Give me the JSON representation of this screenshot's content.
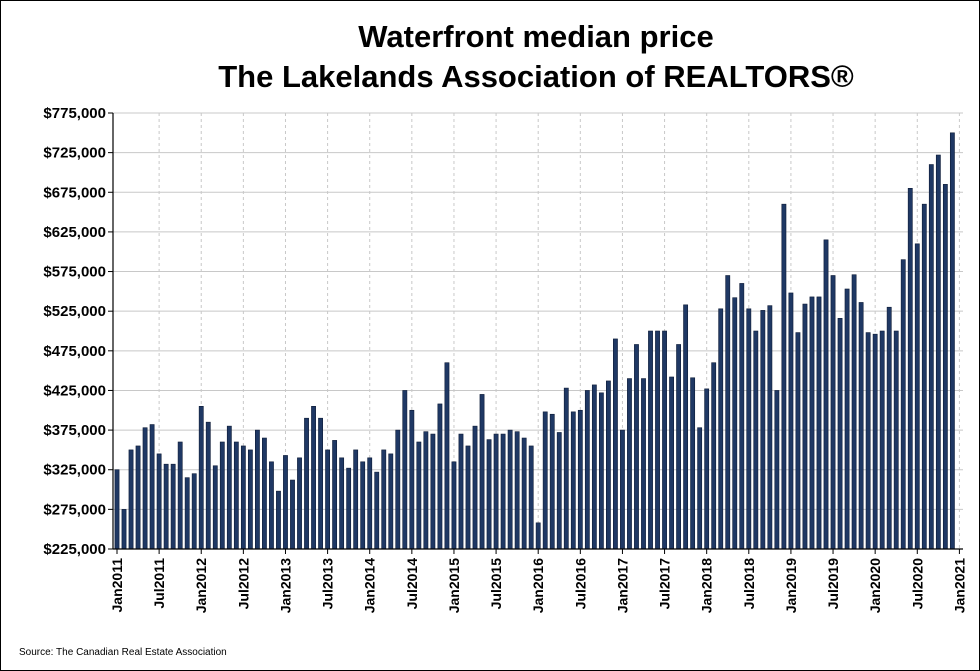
{
  "chart_data": {
    "type": "bar",
    "title": "Waterfront median price",
    "subtitle": "The Lakelands Association of REALTORS®",
    "source": "Source: The Canadian Real Estate Association",
    "xlabel": "",
    "ylabel": "",
    "ylim": [
      225000,
      775000
    ],
    "y_ticks": [
      225000,
      275000,
      325000,
      375000,
      425000,
      475000,
      525000,
      575000,
      625000,
      675000,
      725000,
      775000
    ],
    "y_tick_labels": [
      "$225,000",
      "$275,000",
      "$325,000",
      "$375,000",
      "$425,000",
      "$475,000",
      "$525,000",
      "$575,000",
      "$625,000",
      "$675,000",
      "$725,000",
      "$775,000"
    ],
    "x_tick_labels": [
      "Jan2011",
      "Jul2011",
      "Jan2012",
      "Jul2012",
      "Jan2013",
      "Jul2013",
      "Jan2014",
      "Jul2014",
      "Jan2015",
      "Jul2015",
      "Jan2016",
      "Jul2016",
      "Jan2017",
      "Jul2017",
      "Jan2018",
      "Jul2018",
      "Jan2019",
      "Jul2019",
      "Jan2020",
      "Jul2020",
      "Jan2021"
    ],
    "grid": {
      "horizontal": true,
      "vertical": true
    },
    "bar_color": "#1f3864",
    "start_month": "2011-01",
    "values": [
      325000,
      275000,
      350000,
      355000,
      378000,
      382000,
      345000,
      332000,
      332000,
      360000,
      315000,
      320000,
      405000,
      385000,
      330000,
      360000,
      380000,
      360000,
      355000,
      350000,
      375000,
      365000,
      335000,
      298000,
      343000,
      312000,
      340000,
      390000,
      405000,
      390000,
      350000,
      362000,
      340000,
      327000,
      350000,
      335000,
      340000,
      322000,
      350000,
      345000,
      375000,
      425000,
      400000,
      360000,
      373000,
      370000,
      408000,
      460000,
      335000,
      370000,
      355000,
      380000,
      420000,
      363000,
      370000,
      370000,
      375000,
      373000,
      365000,
      355000,
      258000,
      398000,
      395000,
      372000,
      428000,
      398000,
      400000,
      425000,
      432000,
      422000,
      437000,
      490000,
      375000,
      440000,
      483000,
      440000,
      500000,
      500000,
      500000,
      442000,
      483000,
      533000,
      441000,
      378000,
      427000,
      460000,
      528000,
      570000,
      542000,
      560000,
      528000,
      500000,
      526000,
      532000,
      425000,
      660000,
      548000,
      498000,
      534000,
      543000,
      543000,
      615000,
      570000,
      516000,
      553000,
      571000,
      536000,
      498000,
      496000,
      500000,
      530000,
      500000,
      590000,
      680000,
      610000,
      660000,
      710000,
      722000,
      685000,
      750000
    ]
  }
}
